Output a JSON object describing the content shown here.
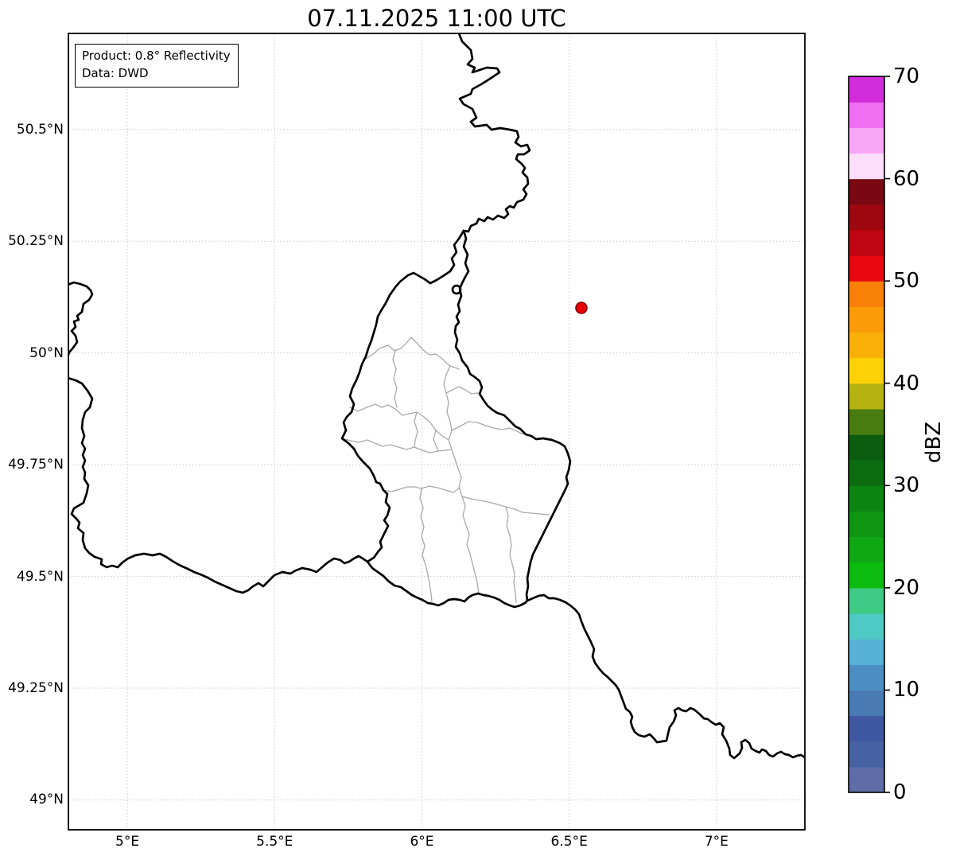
{
  "figure": {
    "title": "07.11.2025 11:00 UTC",
    "background_color": "#ffffff"
  },
  "annotation": {
    "product_line": "Product: 0.8° Reflectivity",
    "data_line": "Data: DWD"
  },
  "axes": {
    "lat_ticks": [
      {
        "label": "50.5°N",
        "value": 50.5
      },
      {
        "label": "50.25°N",
        "value": 50.25
      },
      {
        "label": "50°N",
        "value": 50.0
      },
      {
        "label": "49.75°N",
        "value": 49.75
      },
      {
        "label": "49.5°N",
        "value": 49.5
      },
      {
        "label": "49.25°N",
        "value": 49.25
      },
      {
        "label": "49°N",
        "value": 49.0
      }
    ],
    "lon_ticks": [
      {
        "label": "5°E",
        "value": 5.0
      },
      {
        "label": "5.5°E",
        "value": 5.5
      },
      {
        "label": "6°E",
        "value": 6.0
      },
      {
        "label": "6.5°E",
        "value": 6.5
      },
      {
        "label": "7°E",
        "value": 7.0
      }
    ],
    "grid_color": "#c8c8c8"
  },
  "colorbar": {
    "label": "dBZ",
    "min": 0,
    "max": 70,
    "band_step": 2.5,
    "tick_values": [
      0,
      10,
      20,
      30,
      40,
      50,
      60,
      70
    ],
    "bands": [
      {
        "from": 0,
        "to": 2.5,
        "color": "#5f6da6"
      },
      {
        "from": 2.5,
        "to": 5,
        "color": "#4762a2"
      },
      {
        "from": 5,
        "to": 7.5,
        "color": "#3f57a0"
      },
      {
        "from": 7.5,
        "to": 10,
        "color": "#4a7ab2"
      },
      {
        "from": 10,
        "to": 12.5,
        "color": "#4a8ec2"
      },
      {
        "from": 12.5,
        "to": 15,
        "color": "#58b2d6"
      },
      {
        "from": 15,
        "to": 17.5,
        "color": "#4fc9c4"
      },
      {
        "from": 17.5,
        "to": 20,
        "color": "#3fcb86"
      },
      {
        "from": 20,
        "to": 22.5,
        "color": "#0bbb0e"
      },
      {
        "from": 22.5,
        "to": 25,
        "color": "#0fa814"
      },
      {
        "from": 25,
        "to": 27.5,
        "color": "#0e9613"
      },
      {
        "from": 27.5,
        "to": 30,
        "color": "#0c8412"
      },
      {
        "from": 30,
        "to": 32.5,
        "color": "#0c6c10"
      },
      {
        "from": 32.5,
        "to": 35,
        "color": "#0c5c10"
      },
      {
        "from": 35,
        "to": 37.5,
        "color": "#497c10"
      },
      {
        "from": 37.5,
        "to": 40,
        "color": "#b5b211"
      },
      {
        "from": 40,
        "to": 42.5,
        "color": "#fdd108"
      },
      {
        "from": 42.5,
        "to": 45,
        "color": "#f8b008"
      },
      {
        "from": 45,
        "to": 47.5,
        "color": "#fb9b07"
      },
      {
        "from": 47.5,
        "to": 50,
        "color": "#f87f08"
      },
      {
        "from": 50,
        "to": 52.5,
        "color": "#e90711"
      },
      {
        "from": 52.5,
        "to": 55,
        "color": "#c00612"
      },
      {
        "from": 55,
        "to": 57.5,
        "color": "#9d0810"
      },
      {
        "from": 57.5,
        "to": 60,
        "color": "#790812"
      },
      {
        "from": 60,
        "to": 62.5,
        "color": "#fcdefb"
      },
      {
        "from": 62.5,
        "to": 65,
        "color": "#f7a6f6"
      },
      {
        "from": 65,
        "to": 67.5,
        "color": "#ef6ef2"
      },
      {
        "from": 67.5,
        "to": 70,
        "color": "#d12ddb"
      }
    ]
  },
  "marker": {
    "fill": "#e60000",
    "edge": "#8b0000"
  },
  "map_style": {
    "country_border_color": "#000000",
    "district_border_color": "#a9a9a9"
  }
}
